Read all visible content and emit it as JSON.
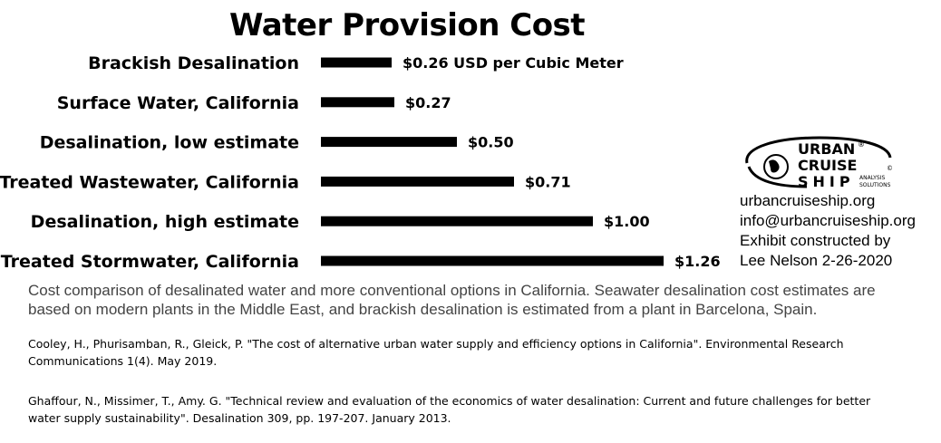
{
  "chart_data": {
    "type": "bar",
    "orientation": "horizontal",
    "title": "Water Provision Cost",
    "categories": [
      "Brackish Desalination",
      "Surface Water, California",
      "Desalination, low estimate",
      "Treated Wastewater, California",
      "Desalination, high estimate",
      "Treated Stormwater, California"
    ],
    "values": [
      0.26,
      0.27,
      0.5,
      0.71,
      1.0,
      1.26
    ],
    "data_labels": [
      "$0.26 USD per Cubic Meter",
      "$0.27",
      "$0.50",
      "$0.71",
      "$1.00",
      "$1.26"
    ],
    "bar_color": "#000000",
    "xlim": [
      0,
      1.26
    ],
    "grid": false,
    "legend": "none"
  },
  "logo": {
    "line1": "URBAN",
    "line2": "CRUISE",
    "line3": "SHIP",
    "tagline1": "ANALYSIS",
    "tagline2": "SOLUTIONS",
    "mark": "®",
    "mark2": "©"
  },
  "contact": {
    "website": "urbancruiseship.org",
    "email": "info@urbancruiseship.org",
    "credit1": "Exhibit constructed by",
    "credit2": "Lee Nelson 2-26-2020"
  },
  "caption": "Cost comparison of desalinated water and more conventional options in California. Seawater desalination cost estimates are based on modern plants in the Middle East, and brackish desalination is estimated from a plant in Barcelona, Spain.",
  "references": [
    "Cooley, H., Phurisamban, R., Gleick, P. \"The cost of alternative urban water supply and efficiency options in California\". Environmental Research Communications 1(4). May 2019.",
    "Ghaffour, N., Missimer, T., Amy. G. \"Technical review and evaluation of the economics of water desalination: Current and future challenges for better water supply sustainability\". Desalination 309, pp. 197-207. January 2013."
  ]
}
